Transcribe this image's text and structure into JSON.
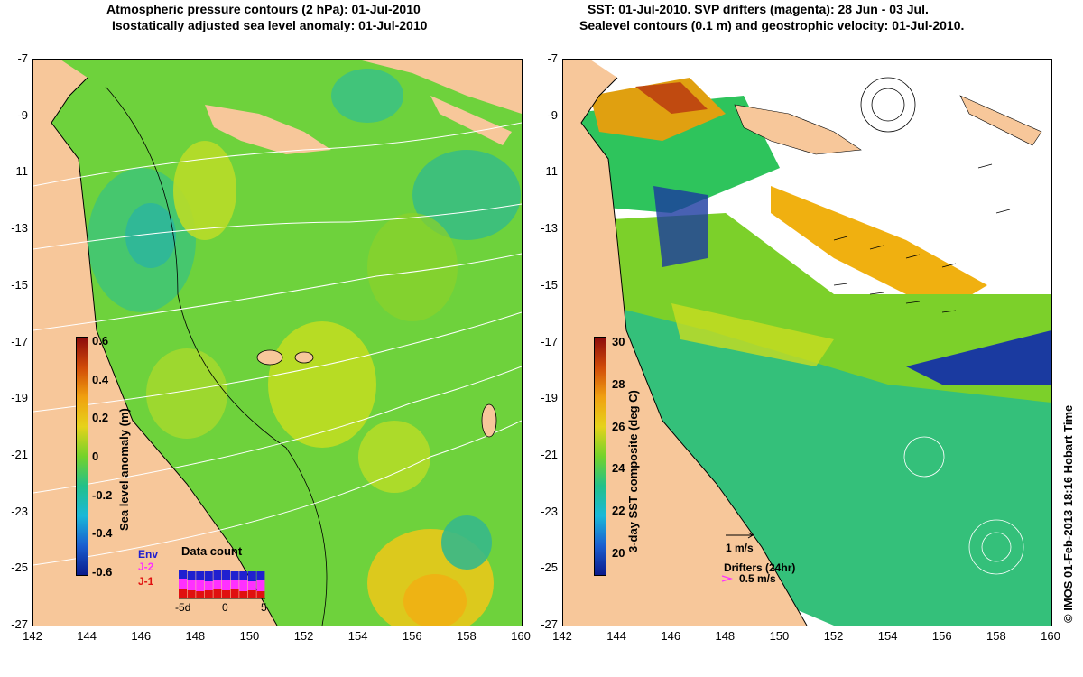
{
  "left_panel": {
    "title_line1": "Atmospheric pressure contours (2 hPa): 01-Jul-2010",
    "title_line2": "Isostatically adjusted sea level anomaly: 01-Jul-2010",
    "colorbar": {
      "label": "Sea level anomaly (m)",
      "ticks": [
        "0.6",
        "0.4",
        "0.2",
        "0",
        "-0.2",
        "-0.4",
        "-0.6"
      ],
      "colors": [
        "#0a1a8c",
        "#1a5fd0",
        "#1ab8d8",
        "#22c08a",
        "#74d22a",
        "#e6d21a",
        "#f0a010",
        "#d04a08",
        "#8c0c0c"
      ]
    },
    "legend": {
      "series": [
        "Env",
        "J-2",
        "J-1"
      ],
      "series_colors": [
        "#2020d0",
        "#ff30ff",
        "#e01010"
      ],
      "title": "Data count",
      "x_ticks": [
        "-5d",
        "0",
        "5"
      ]
    }
  },
  "right_panel": {
    "title_line1": "SST: 01-Jul-2010. SVP drifters (magenta): 28 Jun - 03 Jul.",
    "title_line2": "Sealevel contours (0.1 m) and geostrophic velocity: 01-Jul-2010.",
    "colorbar": {
      "label": "3-day SST composite (deg C)",
      "ticks": [
        "30",
        "28",
        "26",
        "24",
        "22",
        "20"
      ],
      "colors": [
        "#0a1a8c",
        "#1a5fd0",
        "#1ab8d8",
        "#22c08a",
        "#74d22a",
        "#e6d21a",
        "#f0a010",
        "#d04a08",
        "#8c0c0c"
      ]
    },
    "velocity_scale": "1 m/s",
    "drifters_label": "Drifters (24hr)",
    "drifters_scale": "0.5 m/s",
    "credit": "© IMOS 01-Feb-2013 18:16 Hobart Time"
  },
  "axes": {
    "lat_ticks": [
      "-7",
      "-9",
      "-11",
      "-13",
      "-15",
      "-17",
      "-19",
      "-21",
      "-23",
      "-25",
      "-27"
    ],
    "lon_ticks": [
      "142",
      "144",
      "146",
      "148",
      "150",
      "152",
      "154",
      "156",
      "158",
      "160"
    ]
  },
  "colors": {
    "land": "#f7c79a",
    "sla_base": "#6ed23c",
    "sst_base": "#ffffff"
  }
}
